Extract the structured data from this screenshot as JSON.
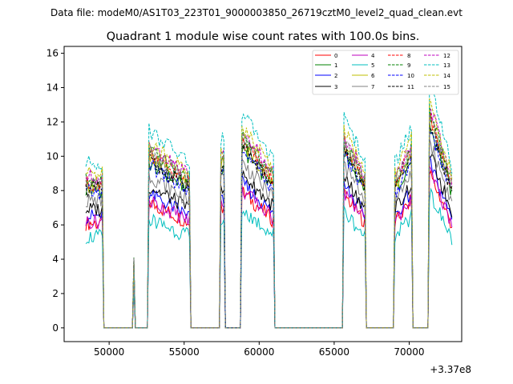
{
  "chart_data": {
    "type": "line",
    "suptitle": "Data file: modeM0/AS1T03_223T01_9000003850_26719cztM0_level2_quad_clean.evt",
    "title": "Quadrant 1 module wise count rates with 100.0s bins.",
    "xlabel": "",
    "ylabel": "",
    "x_offset_label": "+3.37e8",
    "x_offset": 337000000,
    "xlim": [
      47000,
      73500
    ],
    "ylim": [
      -0.8,
      16.4
    ],
    "x_ticks": [
      50000,
      55000,
      60000,
      65000,
      70000
    ],
    "x_tick_labels": [
      "50000",
      "55000",
      "60000",
      "65000",
      "70000"
    ],
    "y_ticks": [
      0,
      2,
      4,
      6,
      8,
      10,
      12,
      14,
      16
    ],
    "y_tick_labels": [
      "0",
      "2",
      "4",
      "6",
      "8",
      "10",
      "12",
      "14",
      "16"
    ],
    "legend_position": "top-right",
    "bin_seconds": 100,
    "segments": [
      {
        "start": 48450,
        "end": 49550,
        "level_start": 1.0,
        "level_end": 1.0
      },
      {
        "start": 51650,
        "end": 51650,
        "level_start": 0.45,
        "level_end": 0.45
      },
      {
        "start": 52650,
        "end": 55400,
        "level_start": 1.2,
        "level_end": 1.0
      },
      {
        "start": 57450,
        "end": 57650,
        "level_start": 1.15,
        "level_end": 1.15
      },
      {
        "start": 58850,
        "end": 61000,
        "level_start": 1.3,
        "level_end": 1.02
      },
      {
        "start": 65650,
        "end": 67100,
        "level_start": 1.28,
        "level_end": 1.0
      },
      {
        "start": 69050,
        "end": 70150,
        "level_start": 1.0,
        "level_end": 1.22
      },
      {
        "start": 71350,
        "end": 72850,
        "level_start": 1.48,
        "level_end": 0.98
      }
    ],
    "series": [
      {
        "name": "0",
        "color": "#ff0000",
        "dash": "solid",
        "base": 6.1
      },
      {
        "name": "1",
        "color": "#008000",
        "dash": "solid",
        "base": 8.0
      },
      {
        "name": "2",
        "color": "#0000ff",
        "dash": "solid",
        "base": 6.5
      },
      {
        "name": "3",
        "color": "#000000",
        "dash": "solid",
        "base": 6.9
      },
      {
        "name": "4",
        "color": "#bf00bf",
        "dash": "solid",
        "base": 6.2
      },
      {
        "name": "5",
        "color": "#00bfbf",
        "dash": "solid",
        "base": 5.3
      },
      {
        "name": "6",
        "color": "#bfbf00",
        "dash": "solid",
        "base": 8.3
      },
      {
        "name": "7",
        "color": "#808080",
        "dash": "solid",
        "base": 7.4
      },
      {
        "name": "8",
        "color": "#ff0000",
        "dash": "dashed",
        "base": 8.4
      },
      {
        "name": "9",
        "color": "#008000",
        "dash": "dashed",
        "base": 8.6
      },
      {
        "name": "10",
        "color": "#0000ff",
        "dash": "dashed",
        "base": 7.9
      },
      {
        "name": "11",
        "color": "#000000",
        "dash": "dashed",
        "base": 8.1
      },
      {
        "name": "12",
        "color": "#bf00bf",
        "dash": "dashed",
        "base": 8.8
      },
      {
        "name": "13",
        "color": "#00bfbf",
        "dash": "dashed",
        "base": 9.6
      },
      {
        "name": "14",
        "color": "#bfbf00",
        "dash": "dashed",
        "base": 9.0
      },
      {
        "name": "15",
        "color": "#808080",
        "dash": "dashed",
        "base": 8.5
      }
    ]
  }
}
